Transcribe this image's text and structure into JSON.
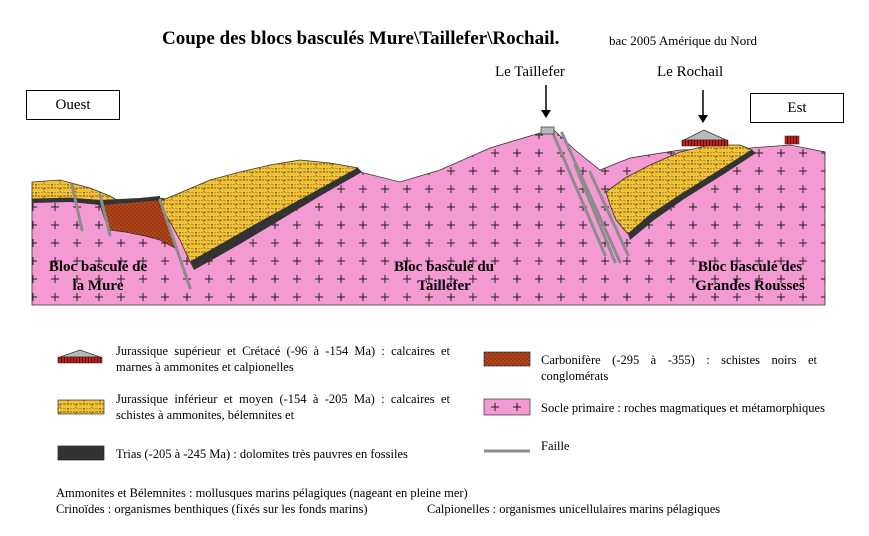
{
  "title": "Coupe des blocs basculés Mure\\Taillefer\\Rochail.",
  "subtitle": "bac 2005 Amérique du Nord",
  "directions": {
    "west": "Ouest",
    "east": "Est"
  },
  "peaks": {
    "taillefer": "Le Taillefer",
    "rochail": "Le Rochail"
  },
  "blocks": {
    "mure_line1": "Bloc basculé de",
    "mure_line2": "la Mure",
    "taillefer_line1": "Bloc basculé du",
    "taillefer_line2": "Taillefer",
    "rousses_line1": "Bloc basculé des",
    "rousses_line2": "Grandes Rousses"
  },
  "legend": {
    "jurassique_sup": "Jurassique supérieur et Crétacé (-96 à -154 Ma) : calcaires et marnes à ammonites et calpionelles",
    "jurassique_inf": "Jurassique inférieur et moyen (-154 à -205 Ma) : calcaires et schistes à ammonites, bélemnites et",
    "trias": "Trias (-205 à -245 Ma) : dolomites très pauvres en fossiles",
    "carbonifere": "Carbonifère (-295 à -355) : schistes noirs et conglomérats",
    "socle": "Socle primaire : roches magmatiques et métamorphiques",
    "faille": "Faille"
  },
  "notes": {
    "line1": "Ammonites et Bélemnites : mollusques marins pélagiques (nageant en pleine mer)",
    "line2a": "Crinoïdes : organismes benthiques (fixés sur les fonds marins)",
    "line2b": "Calpionelles : organismes unicellulaires marins pélagiques"
  },
  "colors": {
    "socle": "#f49ad3",
    "jurassique_inf": "#f2c23a",
    "carbonifere": "#b5451b",
    "trias": "#333333",
    "faille": "#8c8c8c",
    "jurassique_sup_cap": "#b9b9b9",
    "jurassique_sup_base": "#c41e1e"
  }
}
